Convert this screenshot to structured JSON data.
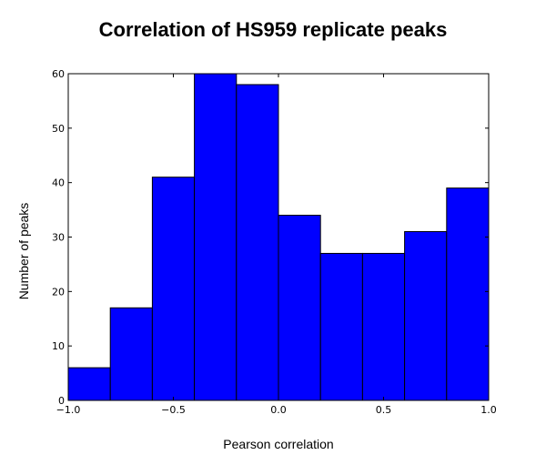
{
  "chart_data": {
    "type": "bar",
    "title": "Correlation of HS959 replicate peaks",
    "xlabel": "Pearson correlation",
    "ylabel": "Number of peaks",
    "bin_edges": [
      -1.0,
      -0.8,
      -0.6,
      -0.4,
      -0.2,
      0.0,
      0.2,
      0.4,
      0.6,
      0.8,
      1.0
    ],
    "values": [
      6,
      17,
      41,
      60,
      58,
      34,
      27,
      27,
      31,
      39
    ],
    "xlim": [
      -1.0,
      1.0
    ],
    "ylim": [
      0,
      60
    ],
    "xticks": [
      -1.0,
      -0.5,
      0.0,
      0.5,
      1.0
    ],
    "xtick_labels": [
      "−1.0",
      "−0.5",
      "0.0",
      "0.5",
      "1.0"
    ],
    "yticks": [
      0,
      10,
      20,
      30,
      40,
      50,
      60
    ],
    "ytick_labels": [
      "0",
      "10",
      "20",
      "30",
      "40",
      "50",
      "60"
    ],
    "bar_color": "#0000ff",
    "edge_color": "#000000",
    "grid": false,
    "legend": false
  }
}
